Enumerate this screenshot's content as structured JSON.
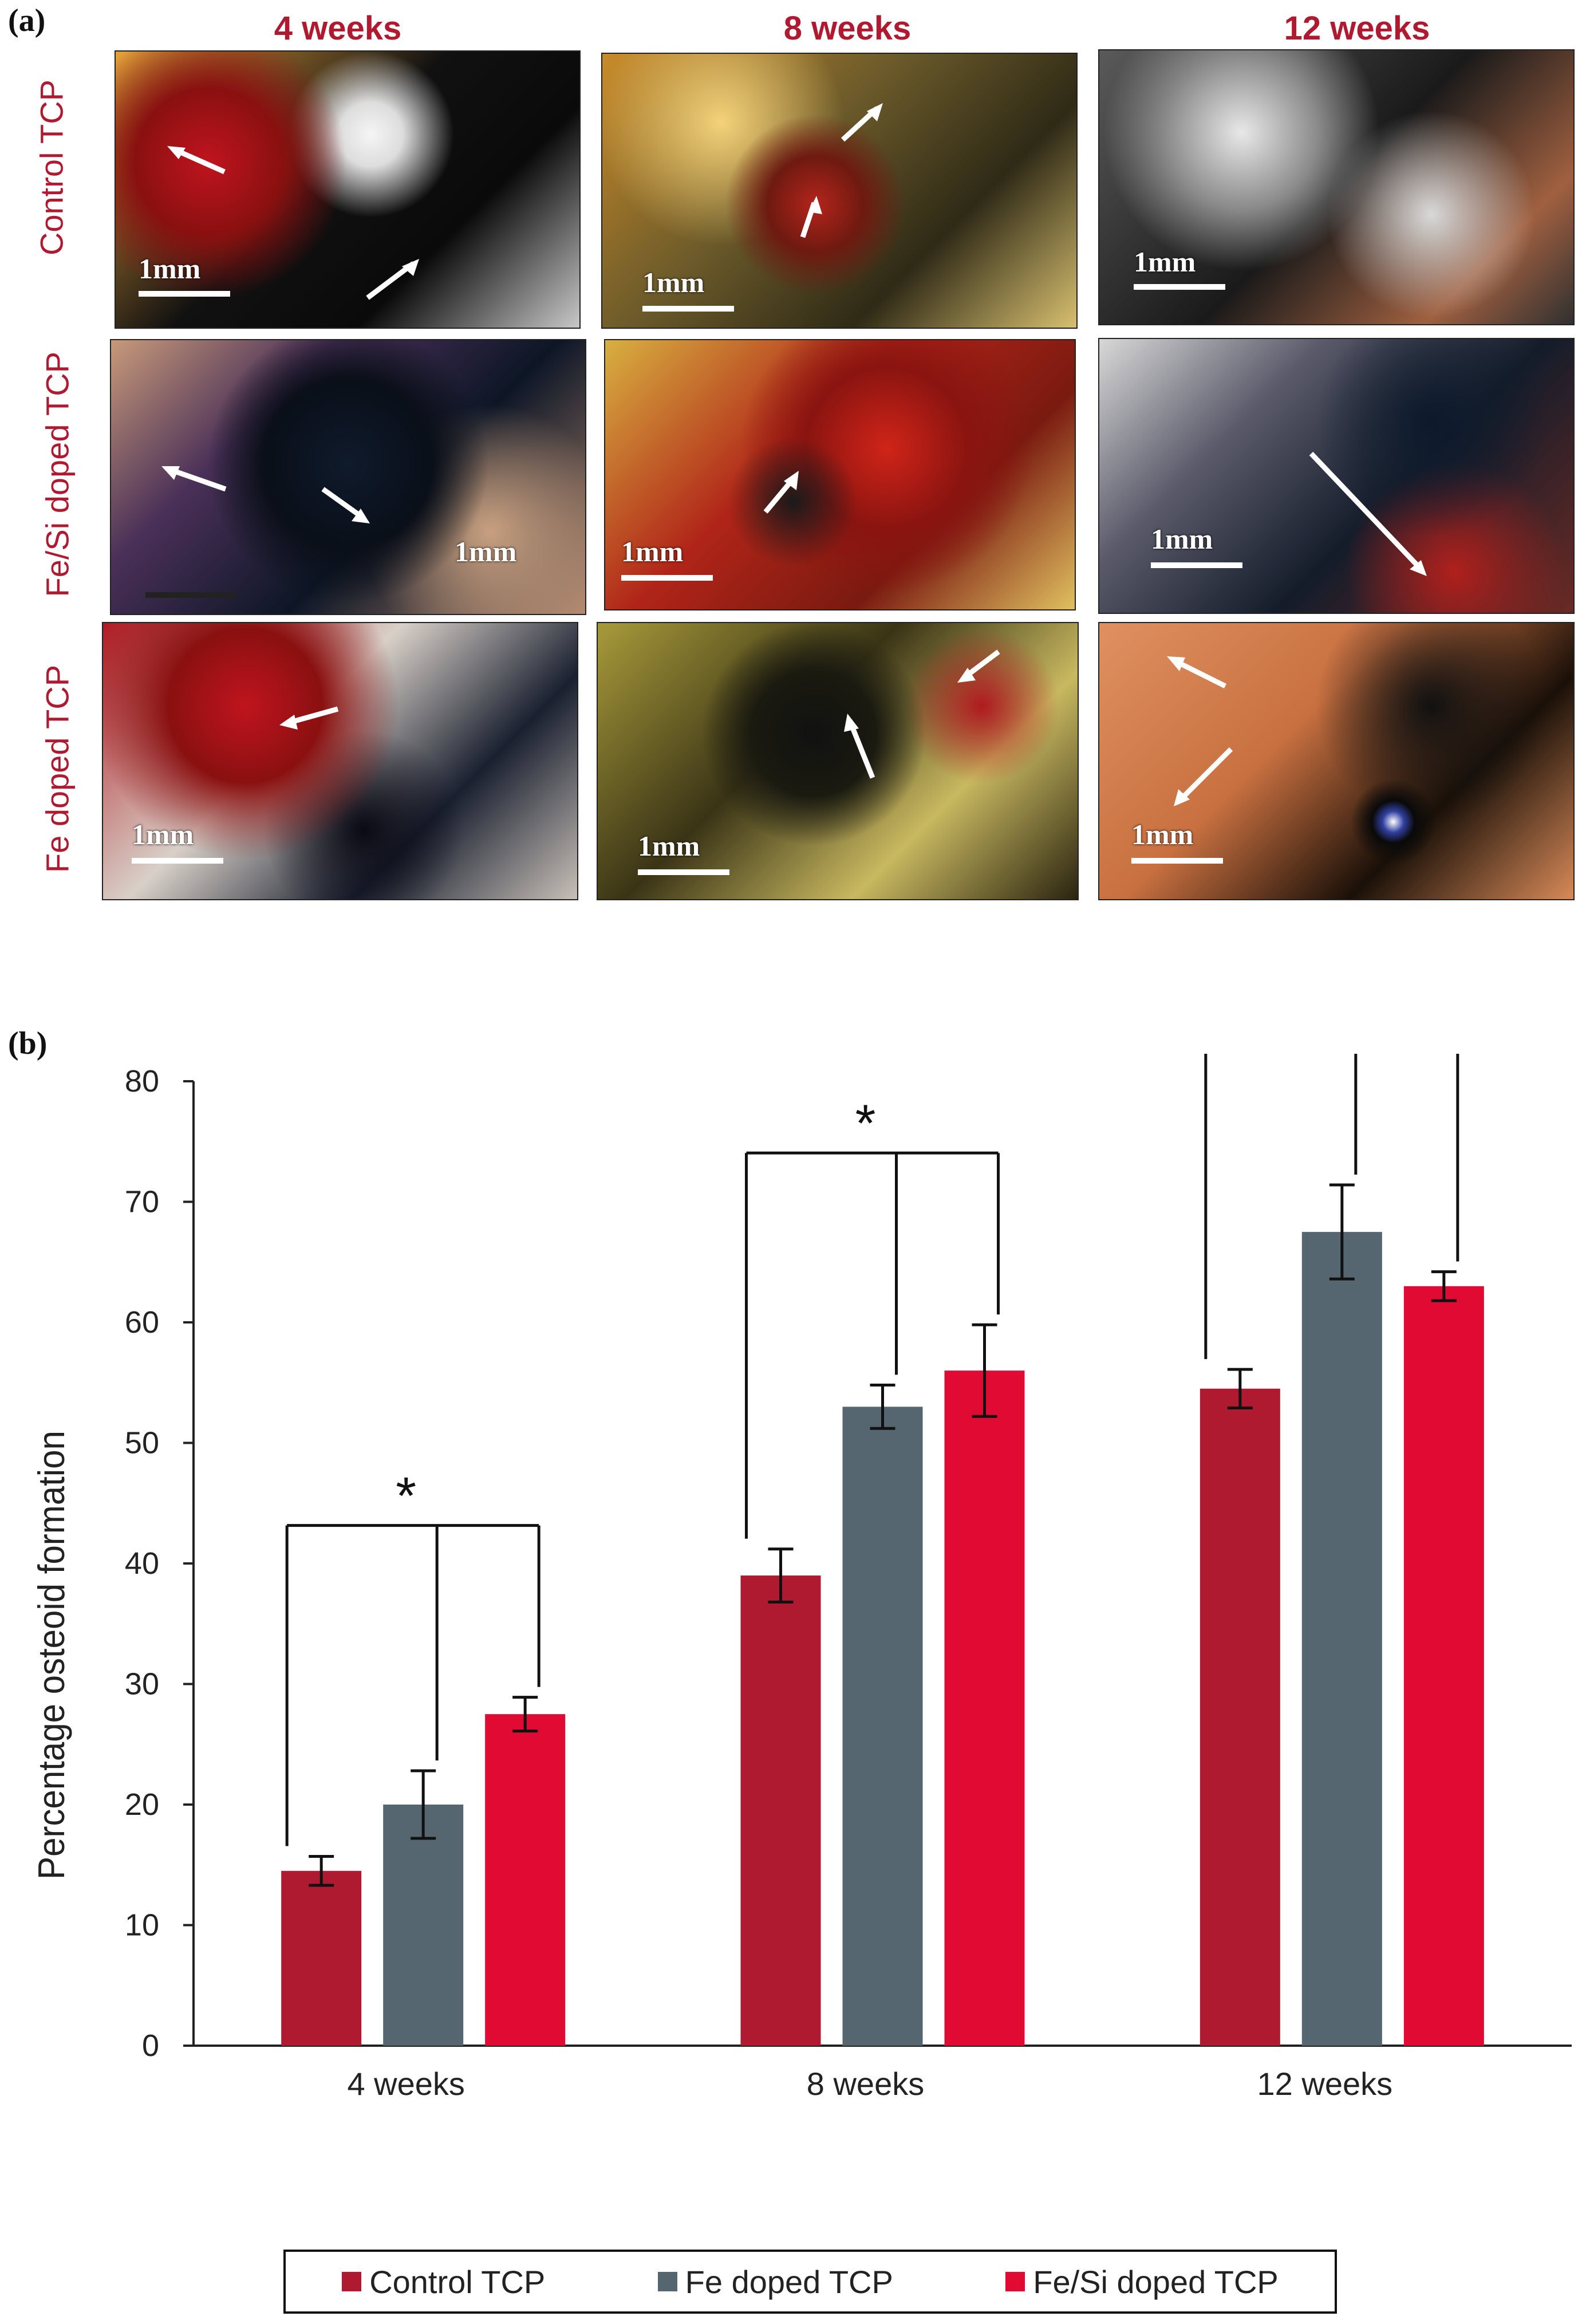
{
  "panel_a": {
    "label": "(a)",
    "columns": [
      "4 weeks",
      "8 weeks",
      "12 weeks"
    ],
    "rows": [
      "Control TCP",
      "Fe/Si doped TCP",
      "Fe doped TCP"
    ],
    "scale_label": "1mm"
  },
  "panel_b": {
    "label": "(b)"
  },
  "chart_data": {
    "type": "bar",
    "ylabel": "Percentage osteoid formation",
    "xlabel": "",
    "ylim": [
      0,
      80
    ],
    "yticks": [
      0,
      10,
      20,
      30,
      40,
      50,
      60,
      70,
      80
    ],
    "categories": [
      "4 weeks",
      "8 weeks",
      "12 weeks"
    ],
    "series": [
      {
        "name": "Control TCP",
        "color": "#b01a30",
        "values": [
          14.5,
          39,
          54.5
        ],
        "errors": [
          1.2,
          2.2,
          1.6
        ]
      },
      {
        "name": "Fe doped TCP",
        "color": "#566670",
        "values": [
          20,
          53,
          67.5
        ],
        "errors": [
          2.8,
          1.8,
          3.9
        ]
      },
      {
        "name": "Fe/Si doped TCP",
        "color": "#e00a33",
        "values": [
          27.5,
          56,
          63
        ],
        "errors": [
          1.4,
          3.8,
          1.2
        ]
      }
    ],
    "significance": [
      "*",
      "*",
      "*"
    ],
    "legend_position": "bottom",
    "grid": false
  }
}
